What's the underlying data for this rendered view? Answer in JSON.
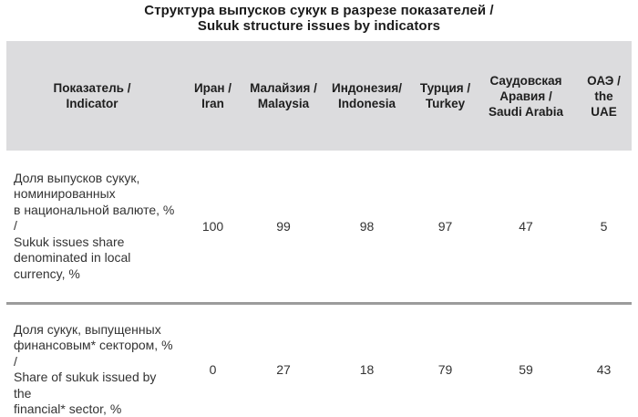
{
  "title": {
    "line_ru": "Структура выпусков сукук в разрезе показателей /",
    "line_en": "Sukuk structure issues by indicators"
  },
  "table": {
    "columns": [
      {
        "label": [
          "Показатель /",
          "Indicator"
        ]
      },
      {
        "label": [
          "Иран /",
          "Iran"
        ]
      },
      {
        "label": [
          "Малайзия /",
          "Malaysia"
        ]
      },
      {
        "label": [
          "Индонезия/",
          "Indonesia"
        ]
      },
      {
        "label": [
          "Турция /",
          "Turkey"
        ]
      },
      {
        "label": [
          "Саудовская",
          "Аравия /",
          "Saudi Arabia"
        ]
      },
      {
        "label": [
          "ОАЭ /",
          "the",
          "UAE"
        ]
      }
    ],
    "rows": [
      {
        "indicator": [
          "Доля выпусков сукук,",
          "номинированных",
          "в национальной валюте, % /",
          "Sukuk issues share",
          "denominated in local",
          "currency, %"
        ],
        "values": [
          "100",
          "99",
          "98",
          "97",
          "47",
          "5"
        ]
      },
      {
        "indicator": [
          "Доля сукук, выпущенных",
          "финансовым* сектором, % /",
          "Share of sukuk issued by the",
          "financial* sector, %"
        ],
        "values": [
          "0",
          "27",
          "18",
          "79",
          "59",
          "43"
        ]
      }
    ]
  },
  "colors": {
    "header_bg": "#dcdcde",
    "divider": "#9c9c9c",
    "title_text": "#1b1b1b",
    "body_text": "#333333"
  }
}
